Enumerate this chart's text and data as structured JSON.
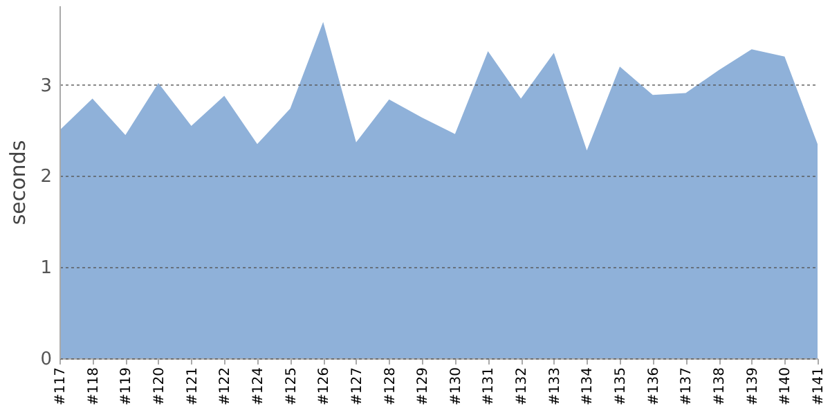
{
  "chart_data": {
    "type": "area",
    "ylabel": "seconds",
    "categories": [
      "#117",
      "#118",
      "#119",
      "#120",
      "#121",
      "#122",
      "#124",
      "#125",
      "#126",
      "#127",
      "#128",
      "#129",
      "#130",
      "#131",
      "#132",
      "#133",
      "#134",
      "#135",
      "#136",
      "#137",
      "#138",
      "#139",
      "#140",
      "#141"
    ],
    "series": [
      {
        "color": "#8fb1d9",
        "values": [
          2.5,
          2.85,
          2.45,
          3.02,
          2.55,
          2.88,
          2.35,
          2.74,
          3.69,
          2.37,
          2.84,
          2.64,
          2.46,
          3.37,
          2.85,
          3.35,
          2.28,
          3.2,
          2.89,
          2.91,
          3.16,
          3.39,
          3.31,
          2.35
        ]
      }
    ],
    "ylim": [
      0,
      3.87
    ],
    "yticks": [
      0,
      1,
      2,
      3
    ],
    "grid": "y"
  }
}
